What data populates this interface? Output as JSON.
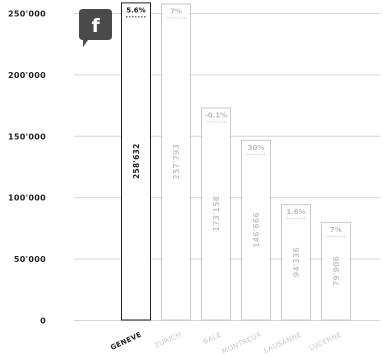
{
  "share": {
    "icon": "facebook-icon",
    "letter": "f",
    "color": "#4a4a4a"
  },
  "colors": {
    "highlight": "#222222",
    "muted": "#c8c8c8",
    "grid": "#d6d6d6"
  },
  "chart_data": {
    "type": "bar",
    "ylim": [
      0,
      250000
    ],
    "yticks": [
      0,
      50000,
      100000,
      150000,
      200000,
      250000
    ],
    "ytick_labels": [
      "0",
      "50'000",
      "100'000",
      "150'000",
      "200'000",
      "250'000"
    ],
    "categories": [
      "GENEVE",
      "ZURICH",
      "BALE",
      "MONTREUX",
      "LAUSANNE",
      "LUCERNE"
    ],
    "values": [
      258632,
      257793,
      173158,
      146666,
      94336,
      79906
    ],
    "value_labels": [
      "258'632",
      "257'793",
      "173'158",
      "146'666",
      "94'336",
      "79'906"
    ],
    "change_labels": [
      "5.6%",
      "7%",
      "-0.1%",
      "30%",
      "1.6%",
      "7%"
    ],
    "highlight_index": 0,
    "grid": true
  }
}
